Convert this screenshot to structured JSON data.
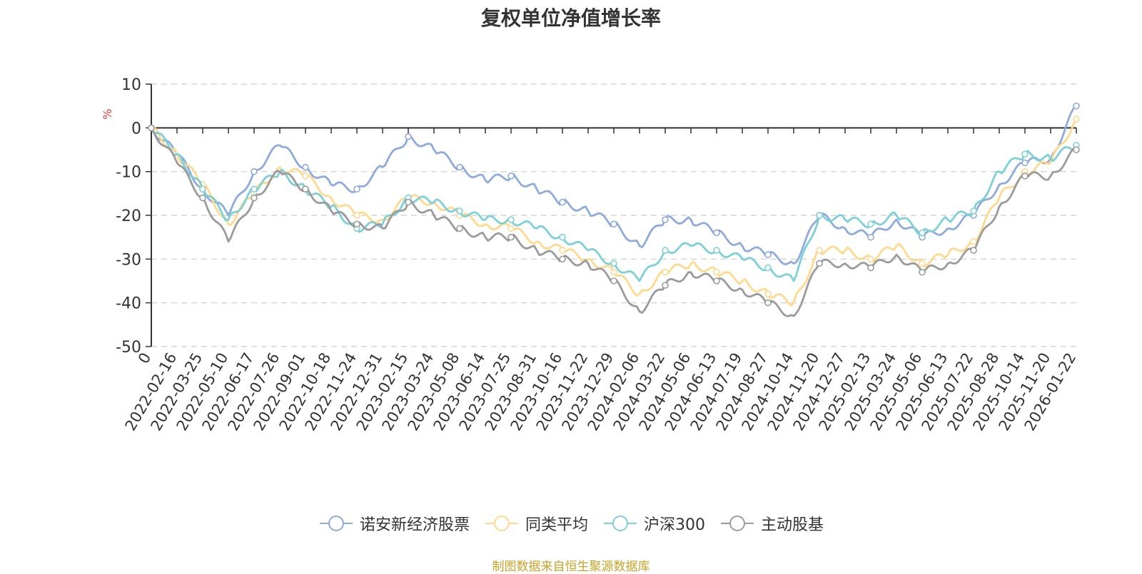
{
  "footer": "制图数据来自恒生聚源数据库",
  "chart_data": {
    "type": "line",
    "title": "复权单位净值增长率",
    "ylabel": "%",
    "ylim": [
      -50,
      10
    ],
    "yticks": [
      10,
      0,
      -10,
      -20,
      -30,
      -40,
      -50
    ],
    "grid": true,
    "legend_position": "bottom",
    "categories": [
      "0",
      "2022-02-16",
      "2022-03-25",
      "2022-05-10",
      "2022-06-17",
      "2022-07-26",
      "2022-09-01",
      "2022-10-18",
      "2022-11-24",
      "2022-12-31",
      "2023-02-15",
      "2023-03-24",
      "2023-05-08",
      "2023-06-14",
      "2023-07-25",
      "2023-08-31",
      "2023-10-16",
      "2023-11-22",
      "2023-12-29",
      "2024-02-06",
      "2024-03-22",
      "2024-05-06",
      "2024-06-13",
      "2024-07-19",
      "2024-08-27",
      "2024-10-14",
      "2024-11-20",
      "2024-12-27",
      "2025-02-13",
      "2025-03-24",
      "2025-05-06",
      "2025-06-13",
      "2025-07-22",
      "2025-08-28",
      "2025-10-14",
      "2025-11-20",
      "2026-01-22"
    ],
    "series": [
      {
        "name": "诺安新经济股票",
        "color": "#8faadc",
        "values": [
          0,
          -6,
          -14,
          -20,
          -10,
          -4,
          -9,
          -13,
          -14,
          -9,
          -2,
          -5,
          -9,
          -12,
          -11,
          -14,
          -17,
          -19,
          -22,
          -27,
          -21,
          -21,
          -24,
          -27,
          -29,
          -31,
          -20,
          -23,
          -25,
          -21,
          -25,
          -23,
          -20,
          -13,
          -8,
          -7,
          5
        ]
      },
      {
        "name": "同类平均",
        "color": "#ffd98e",
        "values": [
          0,
          -6,
          -13,
          -22,
          -15,
          -9,
          -11,
          -16,
          -20,
          -21,
          -16,
          -17,
          -20,
          -22,
          -23,
          -26,
          -28,
          -30,
          -33,
          -38,
          -33,
          -31,
          -33,
          -35,
          -38,
          -40,
          -28,
          -28,
          -30,
          -27,
          -31,
          -29,
          -26,
          -16,
          -10,
          -8,
          2
        ]
      },
      {
        "name": "沪深300",
        "color": "#7dd1d6",
        "values": [
          0,
          -6,
          -14,
          -21,
          -14,
          -10,
          -14,
          -18,
          -23,
          -22,
          -16,
          -17,
          -19,
          -21,
          -21,
          -23,
          -25,
          -28,
          -31,
          -35,
          -28,
          -27,
          -28,
          -30,
          -32,
          -35,
          -20,
          -21,
          -22,
          -20,
          -24,
          -21,
          -19,
          -10,
          -6,
          -7,
          -4
        ]
      },
      {
        "name": "主动股基",
        "color": "#9b9b9b",
        "values": [
          0,
          -8,
          -16,
          -26,
          -16,
          -10,
          -14,
          -19,
          -22,
          -23,
          -17,
          -20,
          -23,
          -25,
          -25,
          -28,
          -30,
          -31,
          -35,
          -42,
          -36,
          -33,
          -35,
          -37,
          -40,
          -43,
          -31,
          -31,
          -32,
          -29,
          -33,
          -31,
          -28,
          -18,
          -11,
          -11,
          -5
        ]
      }
    ]
  }
}
